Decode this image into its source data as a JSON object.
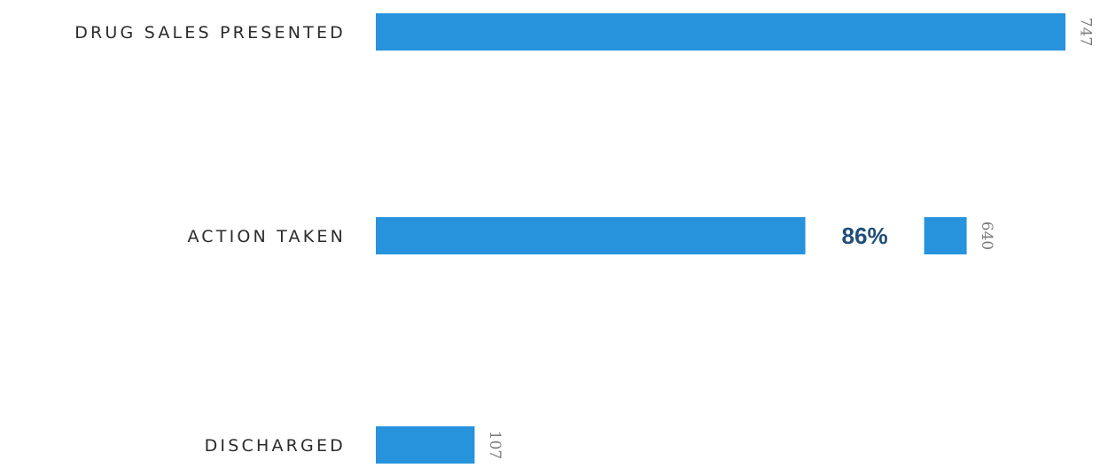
{
  "chart_data": {
    "type": "bar",
    "orientation": "horizontal",
    "categories": [
      "DRUG SALES PRESENTED",
      "ACTION TAKEN",
      "DISCHARGED"
    ],
    "values": [
      747,
      640,
      107
    ],
    "annotations": [
      {
        "category": "ACTION TAKEN",
        "text": "86%"
      }
    ],
    "title": "",
    "xlabel": "",
    "ylabel": "",
    "xlim": [
      0,
      747
    ],
    "grid": false,
    "legend": "none",
    "colors": {
      "bar": "#2693dc",
      "percent_text": "#1f4e79",
      "value_text": "#7a7a7a"
    }
  }
}
